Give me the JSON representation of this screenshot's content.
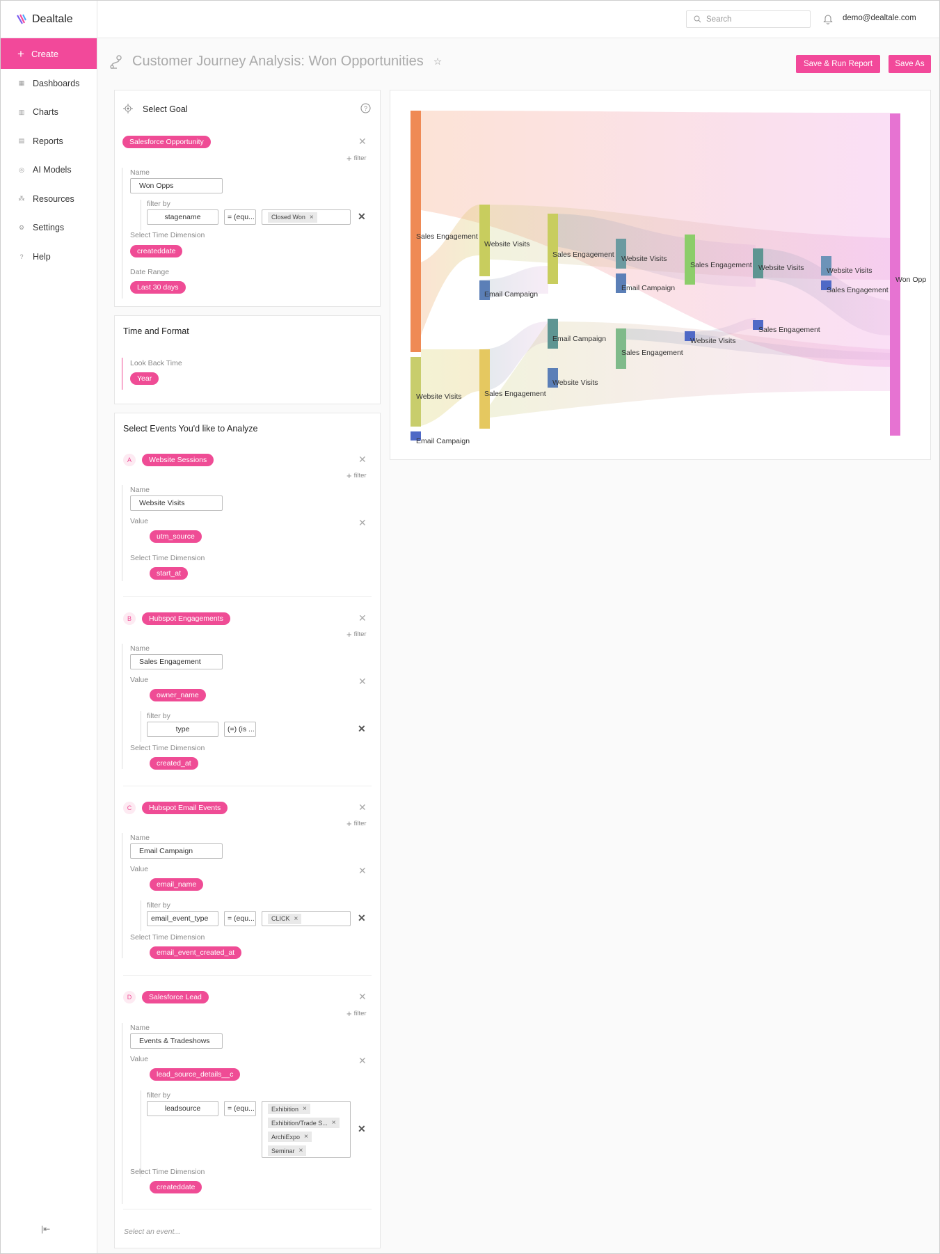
{
  "app": {
    "name": "Dealtale"
  },
  "sidebar": {
    "create_label": "Create",
    "items": [
      {
        "label": "Dashboards",
        "icon": "dashboard-icon"
      },
      {
        "label": "Charts",
        "icon": "chart-icon"
      },
      {
        "label": "Reports",
        "icon": "report-icon"
      },
      {
        "label": "AI Models",
        "icon": "ai-model-icon"
      },
      {
        "label": "Resources",
        "icon": "resources-icon"
      },
      {
        "label": "Settings",
        "icon": "gear-icon"
      },
      {
        "label": "Help",
        "icon": "help-icon"
      }
    ]
  },
  "topbar": {
    "search_placeholder": "Search",
    "user_email": "demo@dealtale.com"
  },
  "page": {
    "title": "Customer Journey Analysis: Won Opportunities",
    "save_run_label": "Save & Run Report",
    "save_as_label": "Save As"
  },
  "goal": {
    "header": "Select Goal",
    "object_tag": "Salesforce Opportunity",
    "filter_link": "filter",
    "name_label": "Name",
    "name_value": "Won Opps",
    "filter_by_label": "filter by",
    "filter_field": "stagename",
    "filter_op": "= (equ...",
    "filter_chip": "Closed Won",
    "time_dim_label": "Select Time Dimension",
    "time_dim_tag": "createddate",
    "date_range_label": "Date Range",
    "date_range_tag": "Last 30 days"
  },
  "time_format": {
    "header": "Time and Format",
    "lookback_label": "Look Back Time",
    "lookback_tag": "Year"
  },
  "events": {
    "header": "Select Events You'd like to Analyze",
    "select_placeholder": "Select an event...",
    "a": {
      "letter": "A",
      "tag": "Website Sessions",
      "name_label": "Name",
      "name_value": "Website Visits",
      "value_label": "Value",
      "value_tag": "utm_source",
      "time_label": "Select Time Dimension",
      "time_tag": "start_at"
    },
    "b": {
      "letter": "B",
      "tag": "Hubspot Engagements",
      "name_label": "Name",
      "name_value": "Sales Engagement",
      "value_label": "Value",
      "value_tag": "owner_name",
      "filter_by_label": "filter by",
      "filter_field": "type",
      "filter_op": "(=) (is ...",
      "time_label": "Select Time Dimension",
      "time_tag": "created_at"
    },
    "c": {
      "letter": "C",
      "tag": "Hubspot Email Events",
      "name_label": "Name",
      "name_value": "Email Campaign",
      "value_label": "Value",
      "value_tag": "email_name",
      "filter_by_label": "filter by",
      "filter_field": "email_event_type",
      "filter_op": "= (equ...",
      "filter_chip": "CLICK",
      "time_label": "Select Time Dimension",
      "time_tag": "email_event_created_at"
    },
    "d": {
      "letter": "D",
      "tag": "Salesforce Lead",
      "name_label": "Name",
      "name_value": "Events & Tradeshows",
      "value_label": "Value",
      "value_tag": "lead_source_details__c",
      "filter_by_label": "filter by",
      "filter_field": "leadsource",
      "filter_op": "= (equ...",
      "filter_chips": [
        "Exhibition",
        "Exhibition/Trade S...",
        "ArchiExpo",
        "Seminar"
      ],
      "time_label": "Select Time Dimension",
      "time_tag": "createddate"
    }
  },
  "sankey": {
    "labels": {
      "n0a": "Sales Engagement",
      "n0b": "Website Visits",
      "n0c": "Email Campaign",
      "n1a": "Website Visits",
      "n1b": "Email Campaign",
      "n1c": "Sales Engagement",
      "n2a": "Sales Engagement",
      "n2b": "Email Campaign",
      "n2c": "Website Visits",
      "n3a": "Website Visits",
      "n3b": "Email Campaign",
      "n3c": "Sales Engagement",
      "n4a": "Sales Engagement",
      "n4b": "Website Visits",
      "n5a": "Website Visits",
      "n5b": "Sales Engagement",
      "n6a": "Website Visits",
      "n6b": "Sales Engagement",
      "end": "Won Opp"
    }
  }
}
